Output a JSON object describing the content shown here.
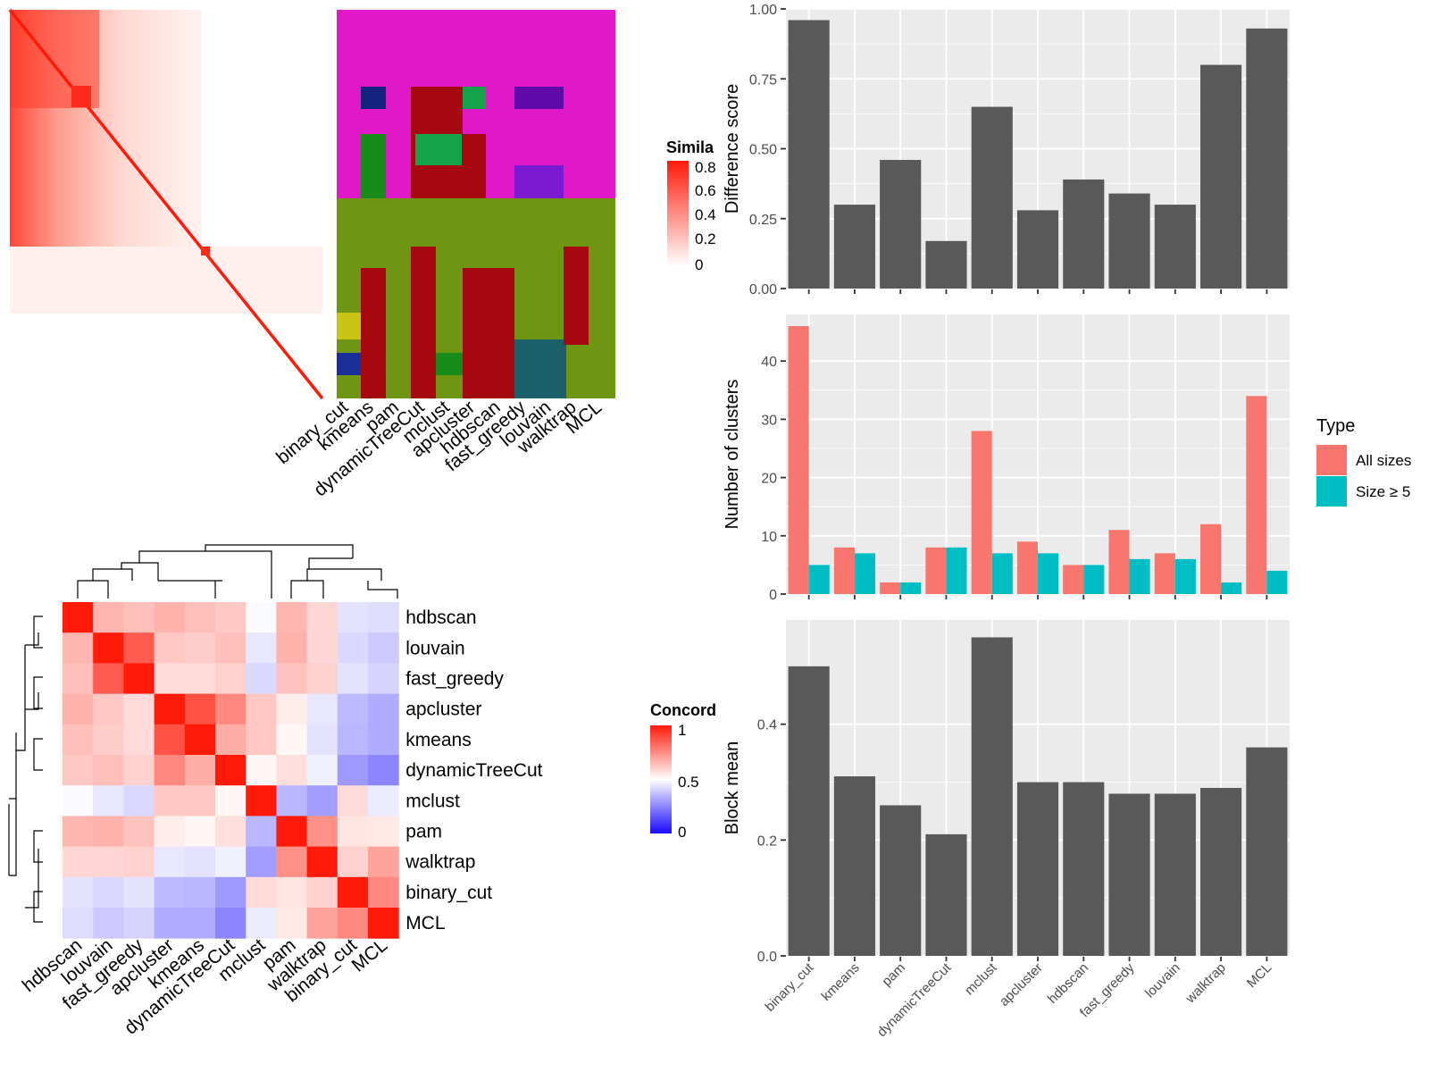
{
  "chart_data": [
    {
      "type": "heatmap",
      "name": "similarity-heatmap",
      "legend": {
        "title": "Simila",
        "ticks": [
          "0.8",
          "0.6",
          "0.4",
          "0.2",
          "0"
        ]
      }
    },
    {
      "type": "heatmap",
      "name": "cluster-membership",
      "columns": [
        "binary_cut",
        "kmeans",
        "pam",
        "dynamicTreeCut",
        "mclust",
        "apcluster",
        "hdbscan",
        "fast_greedy",
        "louvain",
        "walktrap",
        "MCL"
      ]
    },
    {
      "type": "heatmap",
      "name": "concordance",
      "labels": [
        "hdbscan",
        "louvain",
        "fast_greedy",
        "apcluster",
        "kmeans",
        "dynamicTreeCut",
        "mclust",
        "pam",
        "walktrap",
        "binary_cut",
        "MCL"
      ],
      "values": [
        [
          1.0,
          0.66,
          0.64,
          0.67,
          0.64,
          0.62,
          0.49,
          0.66,
          0.59,
          0.44,
          0.43
        ],
        [
          0.66,
          1.0,
          0.86,
          0.62,
          0.61,
          0.64,
          0.45,
          0.67,
          0.59,
          0.42,
          0.39
        ],
        [
          0.64,
          0.86,
          1.0,
          0.58,
          0.58,
          0.6,
          0.42,
          0.63,
          0.6,
          0.44,
          0.41
        ],
        [
          0.67,
          0.62,
          0.58,
          1.0,
          0.88,
          0.76,
          0.62,
          0.54,
          0.45,
          0.36,
          0.33
        ],
        [
          0.64,
          0.61,
          0.58,
          0.88,
          1.0,
          0.68,
          0.62,
          0.52,
          0.44,
          0.35,
          0.33
        ],
        [
          0.62,
          0.64,
          0.6,
          0.76,
          0.68,
          1.0,
          0.52,
          0.57,
          0.47,
          0.29,
          0.25
        ],
        [
          0.49,
          0.45,
          0.42,
          0.62,
          0.62,
          0.52,
          1.0,
          0.35,
          0.3,
          0.58,
          0.46
        ],
        [
          0.66,
          0.67,
          0.63,
          0.54,
          0.52,
          0.57,
          0.35,
          1.0,
          0.74,
          0.56,
          0.55
        ],
        [
          0.59,
          0.59,
          0.6,
          0.45,
          0.44,
          0.47,
          0.3,
          0.74,
          1.0,
          0.6,
          0.7
        ],
        [
          0.44,
          0.42,
          0.44,
          0.36,
          0.35,
          0.29,
          0.58,
          0.56,
          0.6,
          1.0,
          0.76
        ],
        [
          0.43,
          0.39,
          0.41,
          0.33,
          0.33,
          0.25,
          0.46,
          0.55,
          0.7,
          0.76,
          1.0
        ]
      ],
      "legend": {
        "title": "Concord",
        "ticks": [
          "1",
          "0.5",
          "0"
        ]
      }
    },
    {
      "type": "bar",
      "name": "difference-score",
      "categories": [
        "binary_cut",
        "kmeans",
        "pam",
        "dynamicTreeCut",
        "mclust",
        "apcluster",
        "hdbscan",
        "fast_greedy",
        "louvain",
        "walktrap",
        "MCL"
      ],
      "values": [
        0.96,
        0.3,
        0.46,
        0.17,
        0.65,
        0.28,
        0.39,
        0.34,
        0.3,
        0.8,
        0.93
      ],
      "ylabel": "Difference score",
      "ylim": [
        0,
        1
      ],
      "yticks": [
        "0.00",
        "0.25",
        "0.50",
        "0.75",
        "1.00"
      ],
      "grid": true
    },
    {
      "type": "bar",
      "name": "number-of-clusters",
      "categories": [
        "binary_cut",
        "kmeans",
        "pam",
        "dynamicTreeCut",
        "mclust",
        "apcluster",
        "hdbscan",
        "fast_greedy",
        "louvain",
        "walktrap",
        "MCL"
      ],
      "series": [
        {
          "name": "All sizes",
          "color": "#F8766D",
          "values": [
            46,
            8,
            2,
            8,
            28,
            9,
            5,
            11,
            7,
            12,
            34
          ]
        },
        {
          "name": "Size ≥ 5",
          "color": "#00BFC4",
          "values": [
            5,
            7,
            2,
            8,
            7,
            7,
            5,
            6,
            6,
            2,
            4
          ]
        }
      ],
      "ylabel": "Number of clusters",
      "ylim": [
        0,
        48
      ],
      "yticks": [
        "0",
        "10",
        "20",
        "30",
        "40"
      ],
      "legend": {
        "title": "Type",
        "position": "right"
      },
      "grid": true
    },
    {
      "type": "bar",
      "name": "block-mean",
      "categories": [
        "binary_cut",
        "kmeans",
        "pam",
        "dynamicTreeCut",
        "mclust",
        "apcluster",
        "hdbscan",
        "fast_greedy",
        "louvain",
        "walktrap",
        "MCL"
      ],
      "values": [
        0.5,
        0.31,
        0.26,
        0.21,
        0.55,
        0.3,
        0.3,
        0.28,
        0.28,
        0.29,
        0.36
      ],
      "ylabel": "Block mean",
      "ylim": [
        0,
        0.58
      ],
      "yticks": [
        "0.0",
        "0.2",
        "0.4"
      ],
      "grid": true
    }
  ]
}
